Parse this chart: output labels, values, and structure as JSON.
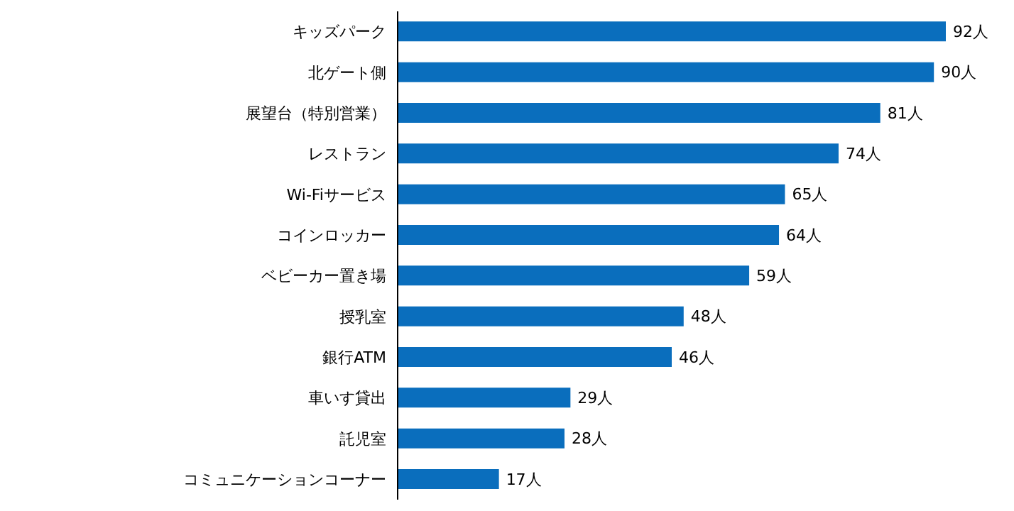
{
  "chart_data": {
    "type": "bar",
    "orientation": "horizontal",
    "categories": [
      "キッズパーク",
      "北ゲート側",
      "展望台（特別営業）",
      "レストラン",
      "Wi-Fiサービス",
      "コインロッカー",
      "ベビーカー置き場",
      "授乳室",
      "銀行ATM",
      "車いす貸出",
      "託児室",
      "コミュニケーションコーナー"
    ],
    "values": [
      92,
      90,
      81,
      74,
      65,
      64,
      59,
      48,
      46,
      29,
      28,
      17
    ],
    "value_labels": [
      "92人",
      "90人",
      "81人",
      "74人",
      "65人",
      "64人",
      "59人",
      "48人",
      "46人",
      "29人",
      "28人",
      "17人"
    ],
    "color": "#0a6ebd",
    "grid": false,
    "legend": false
  }
}
